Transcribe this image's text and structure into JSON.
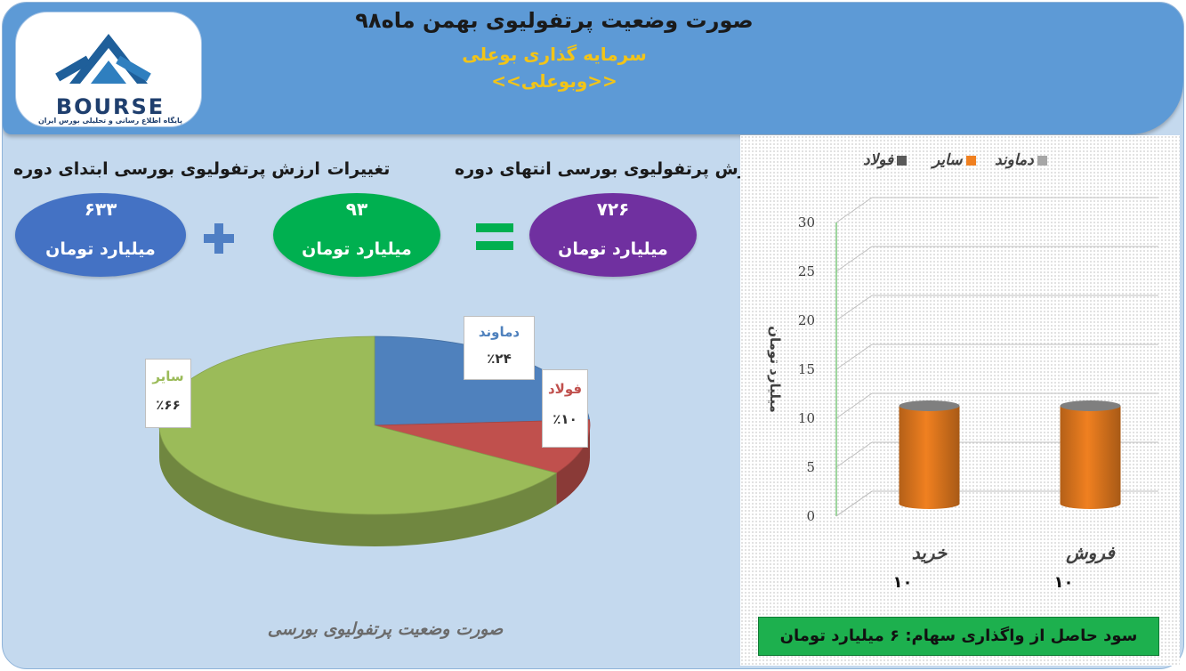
{
  "header": {
    "title": "صورت وضعیت پرتفولیوی بهمن ماه۹۸",
    "company": "سرمایه گذاری بوعلی",
    "ticker": "<<وبوعلی>>"
  },
  "logo": {
    "word": "BOURSE",
    "subtitle": "پایگاه اطلاع رسانی و تحلیلی بورس ایران",
    "icon": "bourse-logo-icon"
  },
  "summary": {
    "start": {
      "label": "ارزش پرتفولیوی بورسی ابتدای دوره",
      "value": "۶۳۳",
      "unit": "میلیارد تومان",
      "color": "#4472c4"
    },
    "change": {
      "label": "تغییرات",
      "value": "۹۳",
      "unit": "میلیارد تومان",
      "color": "#00b050"
    },
    "end": {
      "label": "ارزش پرتفولیوی بورسی انتهای دوره",
      "value": "۷۲۶",
      "unit": "میلیارد تومان",
      "color": "#7030a0"
    },
    "plus_icon": "plus-icon",
    "equals_icon": "equals-icon"
  },
  "pie_caption": "صورت وضعیت پرتفولیوی بورسی",
  "profit_banner": "سود حاصل از واگذاری سهام: ۶ میلیارد تومان",
  "chart_data": [
    {
      "type": "pie",
      "title": "",
      "slices": [
        {
          "name": "دماوند",
          "value": 24,
          "label": "٪۲۴",
          "color": "#4f81bd"
        },
        {
          "name": "فولاد",
          "value": 10,
          "label": "٪۱۰",
          "color": "#c0504d"
        },
        {
          "name": "سایر",
          "value": 66,
          "label": "٪۶۶",
          "color": "#9bbb59"
        }
      ]
    },
    {
      "type": "bar",
      "title": "",
      "categories": [
        "خرید",
        "فروش"
      ],
      "category_values": [
        "۱۰",
        "۱۰"
      ],
      "series": [
        {
          "name": "دماوند",
          "values": [
            0,
            0
          ],
          "color": "#a6a6a6"
        },
        {
          "name": "سایر",
          "values": [
            10,
            10
          ],
          "color": "#f08020"
        },
        {
          "name": "فولاد",
          "values": [
            0,
            0
          ],
          "color": "#595959"
        }
      ],
      "ylabel": "میلیارد تومان",
      "xlabel": "",
      "ylim": [
        0,
        30
      ],
      "yticks": [
        0,
        5,
        10,
        15,
        20,
        25,
        30
      ],
      "legend_position": "top"
    }
  ]
}
